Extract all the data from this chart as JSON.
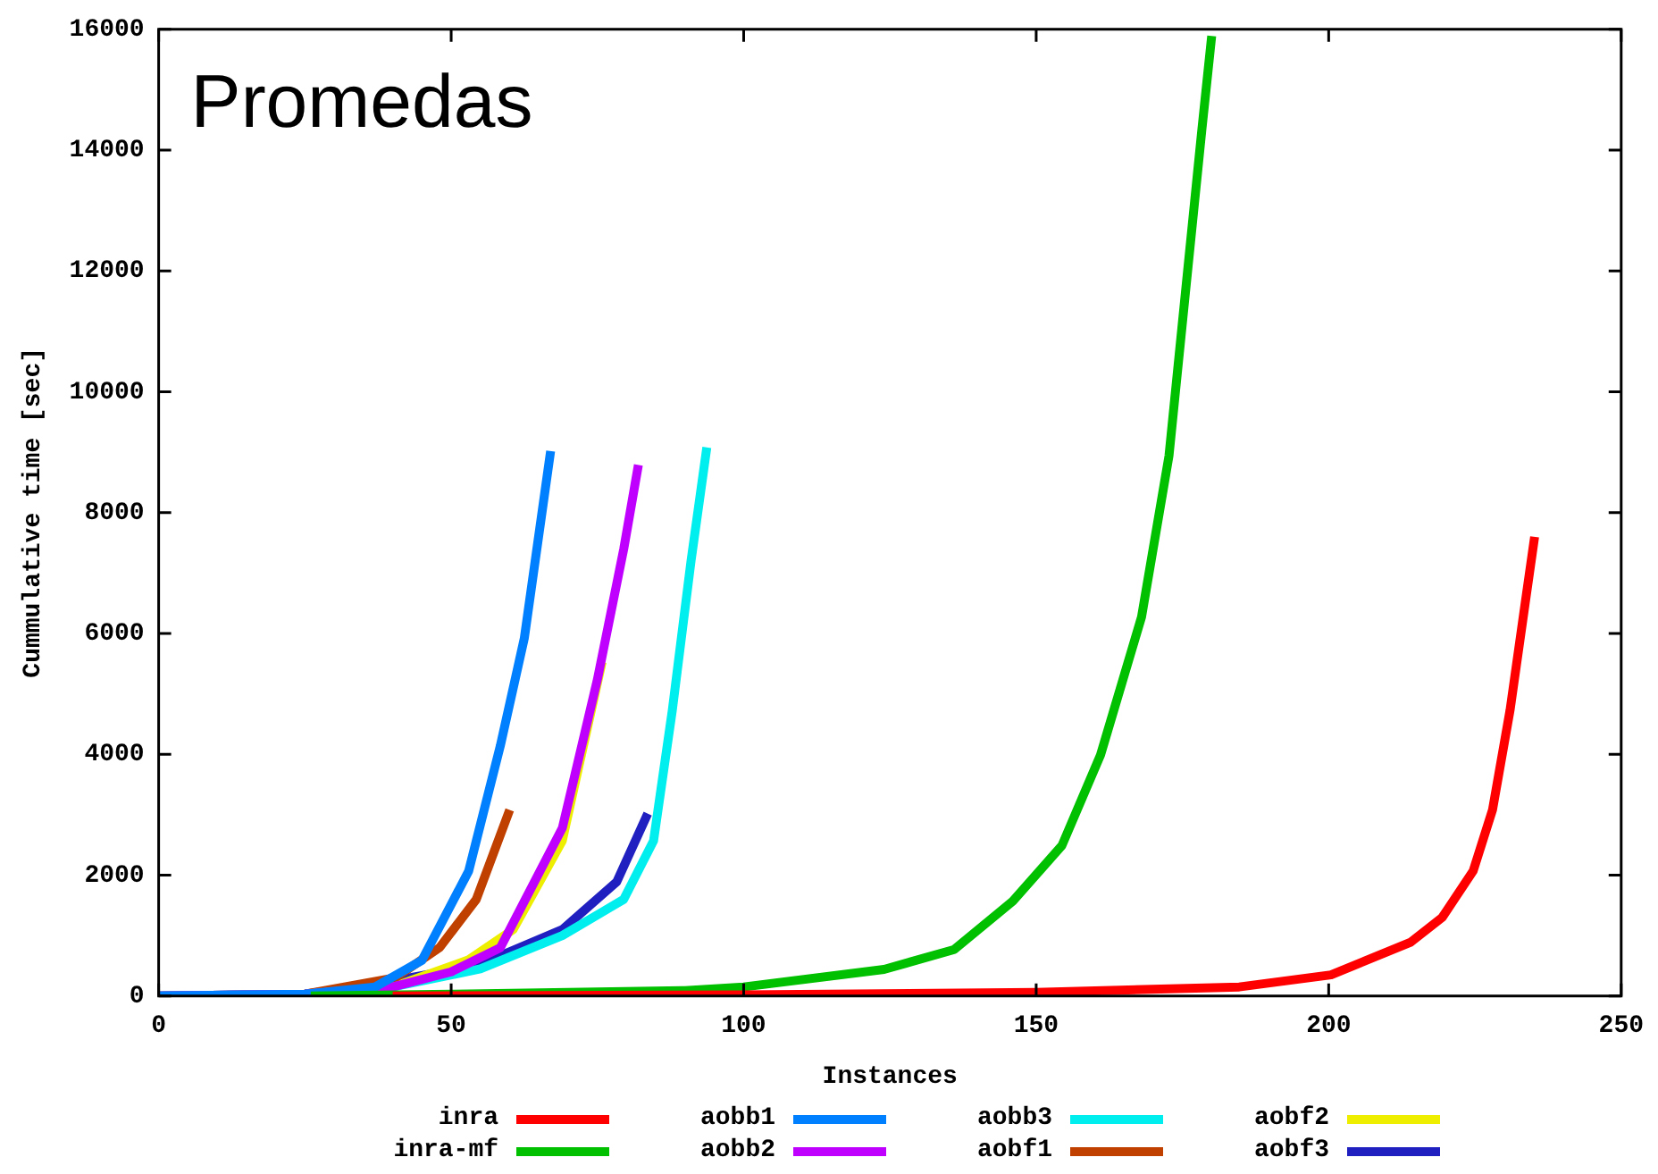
{
  "chart_data": {
    "type": "line",
    "title": "Promedas",
    "xlabel": "Instances",
    "ylabel": "Cummulative time [sec]",
    "xlim": [
      0,
      250
    ],
    "xticks": [
      0,
      50,
      100,
      150,
      200,
      250
    ],
    "ylim": [
      0,
      16000
    ],
    "yticks": [
      0,
      2000,
      4000,
      6000,
      8000,
      10000,
      12000,
      14000,
      16000
    ],
    "grid": false,
    "legend": "bottom",
    "marker": "none",
    "line_style": "solid",
    "series": [
      {
        "name": "inra",
        "color": "#ff0000",
        "x": [
          40,
          100,
          150,
          184.7,
          200.4,
          214,
          219.4,
          224.7,
          228,
          231,
          233.6,
          235.2
        ],
        "values": [
          0,
          20,
          60,
          150,
          350,
          890,
          1300,
          2070,
          3080,
          4730,
          6510,
          7600
        ]
      },
      {
        "name": "inra-mf",
        "color": "#00c000",
        "x": [
          26,
          50,
          90,
          100,
          124,
          136,
          146,
          154.4,
          161,
          168,
          172.7,
          175.5,
          178.3,
          180
        ],
        "values": [
          0,
          30,
          90,
          150,
          440,
          770,
          1570,
          2490,
          3990,
          6270,
          8940,
          11630,
          14320,
          15890
        ]
      },
      {
        "name": "aobb1",
        "color": "#0080ff",
        "x": [
          0,
          25,
          37,
          45,
          53,
          58.4,
          62.5,
          67
        ],
        "values": [
          0,
          30,
          150,
          590,
          2070,
          4140,
          5920,
          9020
        ]
      },
      {
        "name": "aobb2",
        "color": "#c000ff",
        "x": [
          0,
          25,
          40,
          50,
          58.4,
          69,
          75,
          79.5,
          82
        ],
        "values": [
          0,
          30,
          150,
          400,
          800,
          2780,
          5240,
          7400,
          8790
        ]
      },
      {
        "name": "aobb3",
        "color": "#00eeee",
        "x": [
          0,
          25,
          40,
          55,
          69,
          79.5,
          84.6,
          87.8,
          91,
          93.7
        ],
        "values": [
          0,
          30,
          150,
          450,
          1000,
          1600,
          2570,
          4730,
          7200,
          9080
        ]
      },
      {
        "name": "aobf1",
        "color": "#c04000",
        "x": [
          0,
          25,
          40.4,
          48,
          54.3,
          60
        ],
        "values": [
          0,
          30,
          300,
          800,
          1600,
          3080
        ]
      },
      {
        "name": "aobf2",
        "color": "#eeee00",
        "x": [
          24,
          40,
          53,
          60.6,
          69,
          75.8
        ],
        "values": [
          0,
          150,
          600,
          1100,
          2570,
          5530
        ]
      },
      {
        "name": "aobf3",
        "color": "#2020c0",
        "x": [
          0,
          25,
          37.2,
          54.3,
          69,
          78.3,
          83.6
        ],
        "values": [
          0,
          30,
          200,
          500,
          1100,
          1890,
          3020
        ]
      }
    ]
  }
}
